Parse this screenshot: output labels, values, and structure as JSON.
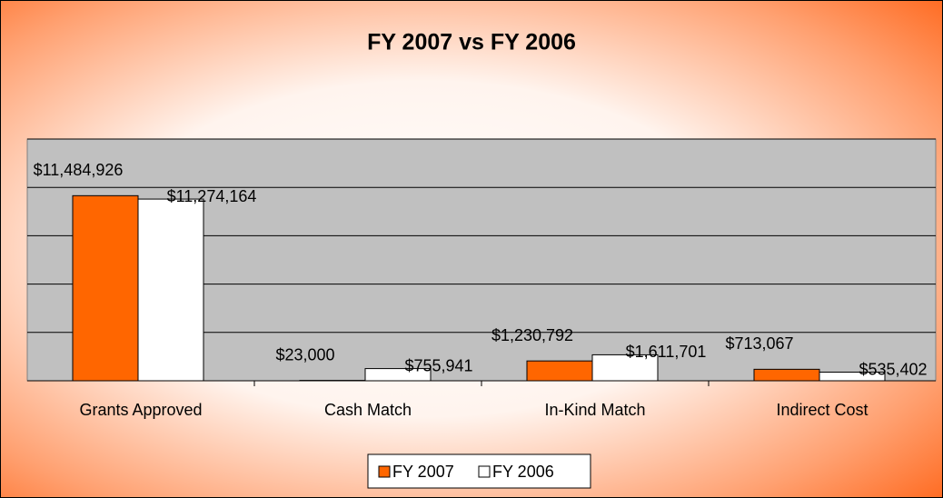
{
  "chart_data": {
    "type": "bar",
    "title": "FY 2007 vs FY 2006",
    "categories": [
      "Grants Approved",
      "Cash Match",
      "In-Kind Match",
      "Indirect Cost"
    ],
    "series": [
      {
        "name": "FY 2007",
        "color": "#ff6600",
        "values": [
          11484926,
          23000,
          1230792,
          713067
        ],
        "value_labels": [
          "$11,484,926",
          "$23,000",
          "$1,230,792",
          "$713,067"
        ]
      },
      {
        "name": "FY 2006",
        "color": "#ffffff",
        "values": [
          11274164,
          755941,
          1611701,
          535402
        ],
        "value_labels": [
          "$11,274,164",
          "$755,941",
          "$1,611,701",
          "$535,402"
        ]
      }
    ],
    "ylim": [
      0,
      15000000
    ],
    "yticks": [
      0,
      3000000,
      6000000,
      9000000,
      12000000,
      15000000
    ],
    "grid": true,
    "legend": "bottom"
  }
}
